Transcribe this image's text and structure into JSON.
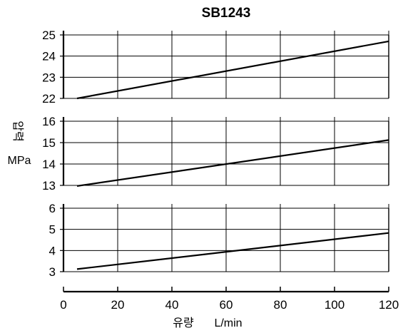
{
  "chart_data": {
    "type": "line",
    "title": "SB1243",
    "xlabel": "유량",
    "xunit": "L/min",
    "ylabel": "압력",
    "yunit": "MPa",
    "xlim": [
      0,
      120
    ],
    "xticks": [
      0,
      20,
      40,
      60,
      80,
      100,
      120
    ],
    "grid": true,
    "panels": [
      {
        "ylim": [
          22,
          25
        ],
        "yticks": [
          22,
          23,
          24,
          25
        ],
        "series": [
          {
            "x": [
              5,
              120
            ],
            "y": [
              22.0,
              24.7
            ]
          }
        ]
      },
      {
        "ylim": [
          13,
          16
        ],
        "yticks": [
          13,
          14,
          15,
          16
        ],
        "series": [
          {
            "x": [
              5,
              120
            ],
            "y": [
              12.97,
              15.12
            ]
          }
        ]
      },
      {
        "ylim": [
          3,
          6
        ],
        "yticks": [
          3,
          4,
          5,
          6
        ],
        "series": [
          {
            "x": [
              5,
              120
            ],
            "y": [
              3.12,
              4.83
            ]
          }
        ]
      }
    ]
  }
}
